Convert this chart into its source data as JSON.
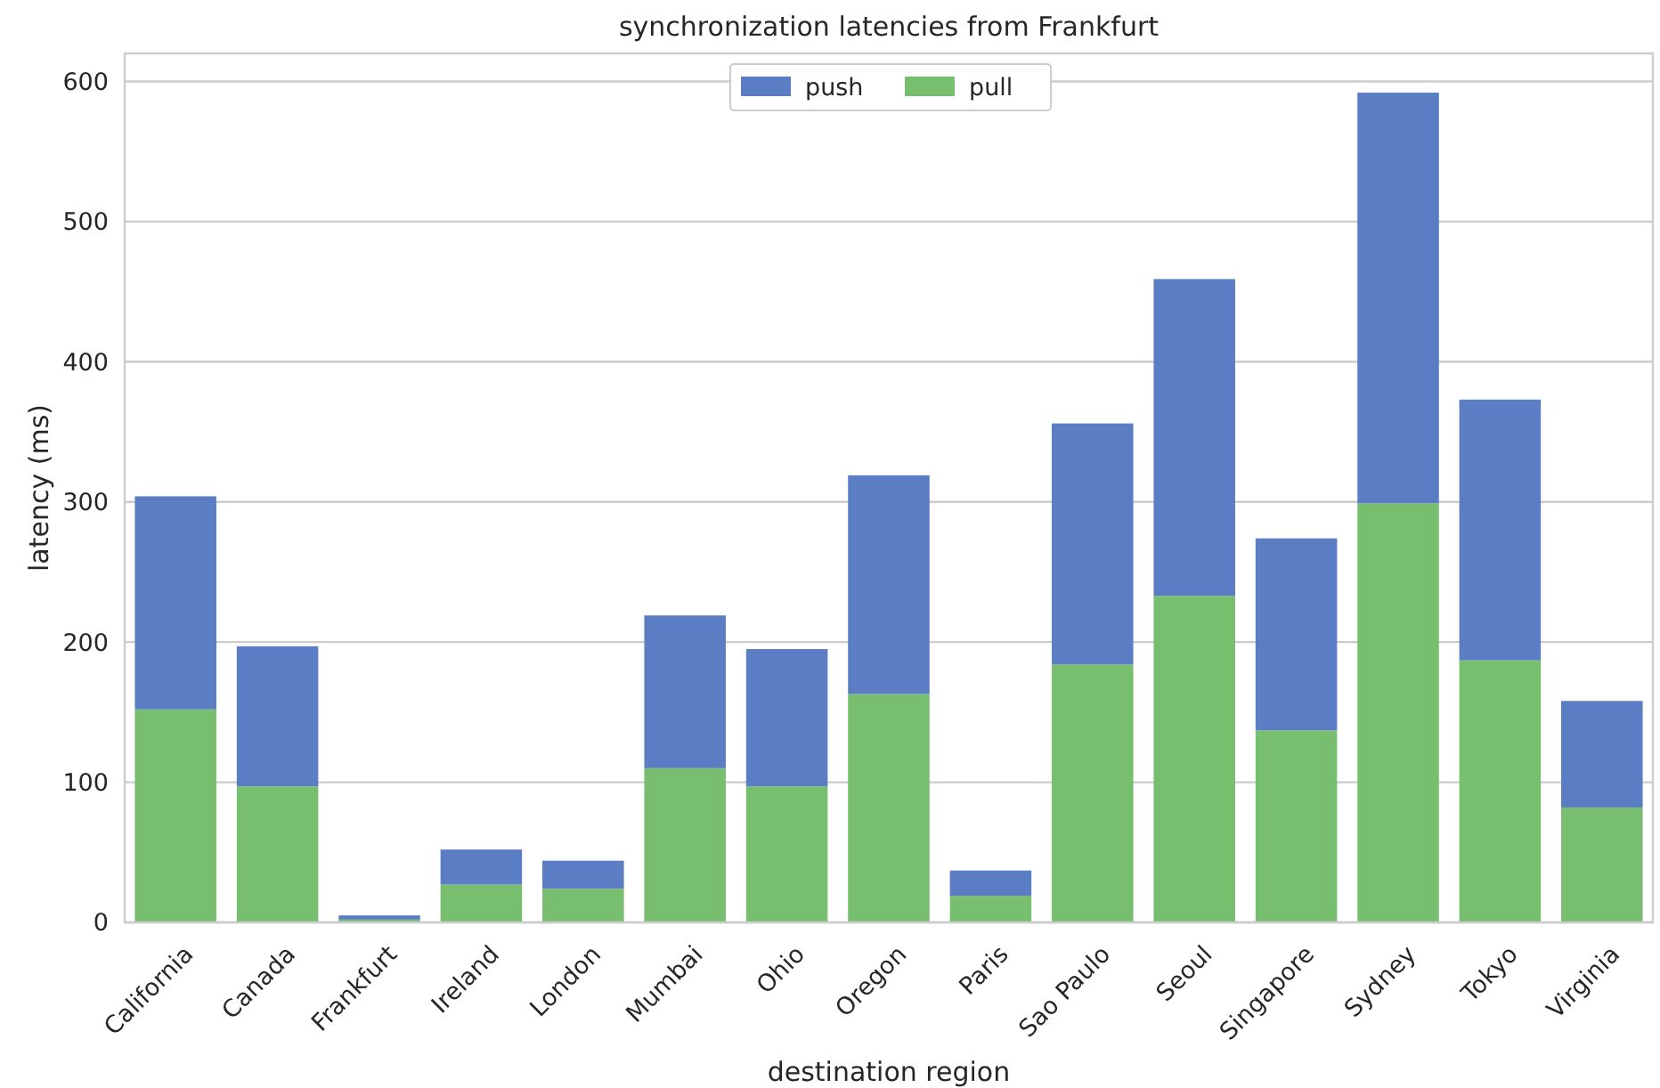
{
  "chart_data": {
    "type": "bar",
    "title": "synchronization latencies from Frankfurt",
    "xlabel": "destination region",
    "ylabel": "latency (ms)",
    "categories": [
      "California",
      "Canada",
      "Frankfurt",
      "Ireland",
      "London",
      "Mumbai",
      "Ohio",
      "Oregon",
      "Paris",
      "Sao Paulo",
      "Seoul",
      "Singapore",
      "Sydney",
      "Tokyo",
      "Virginia"
    ],
    "stacked": true,
    "series": [
      {
        "name": "pull",
        "color": "#77be6f",
        "values": [
          152,
          97,
          2,
          27,
          24,
          110,
          97,
          163,
          19,
          184,
          233,
          137,
          299,
          187,
          82
        ]
      },
      {
        "name": "push",
        "color": "#5a7dc3",
        "values": [
          152,
          100,
          3,
          25,
          20,
          109,
          98,
          156,
          18,
          172,
          226,
          137,
          293,
          186,
          76
        ]
      }
    ],
    "ylim": [
      0,
      620
    ],
    "yticks": [
      0,
      100,
      200,
      300,
      400,
      500,
      600
    ],
    "grid": "y",
    "legend": "top"
  }
}
